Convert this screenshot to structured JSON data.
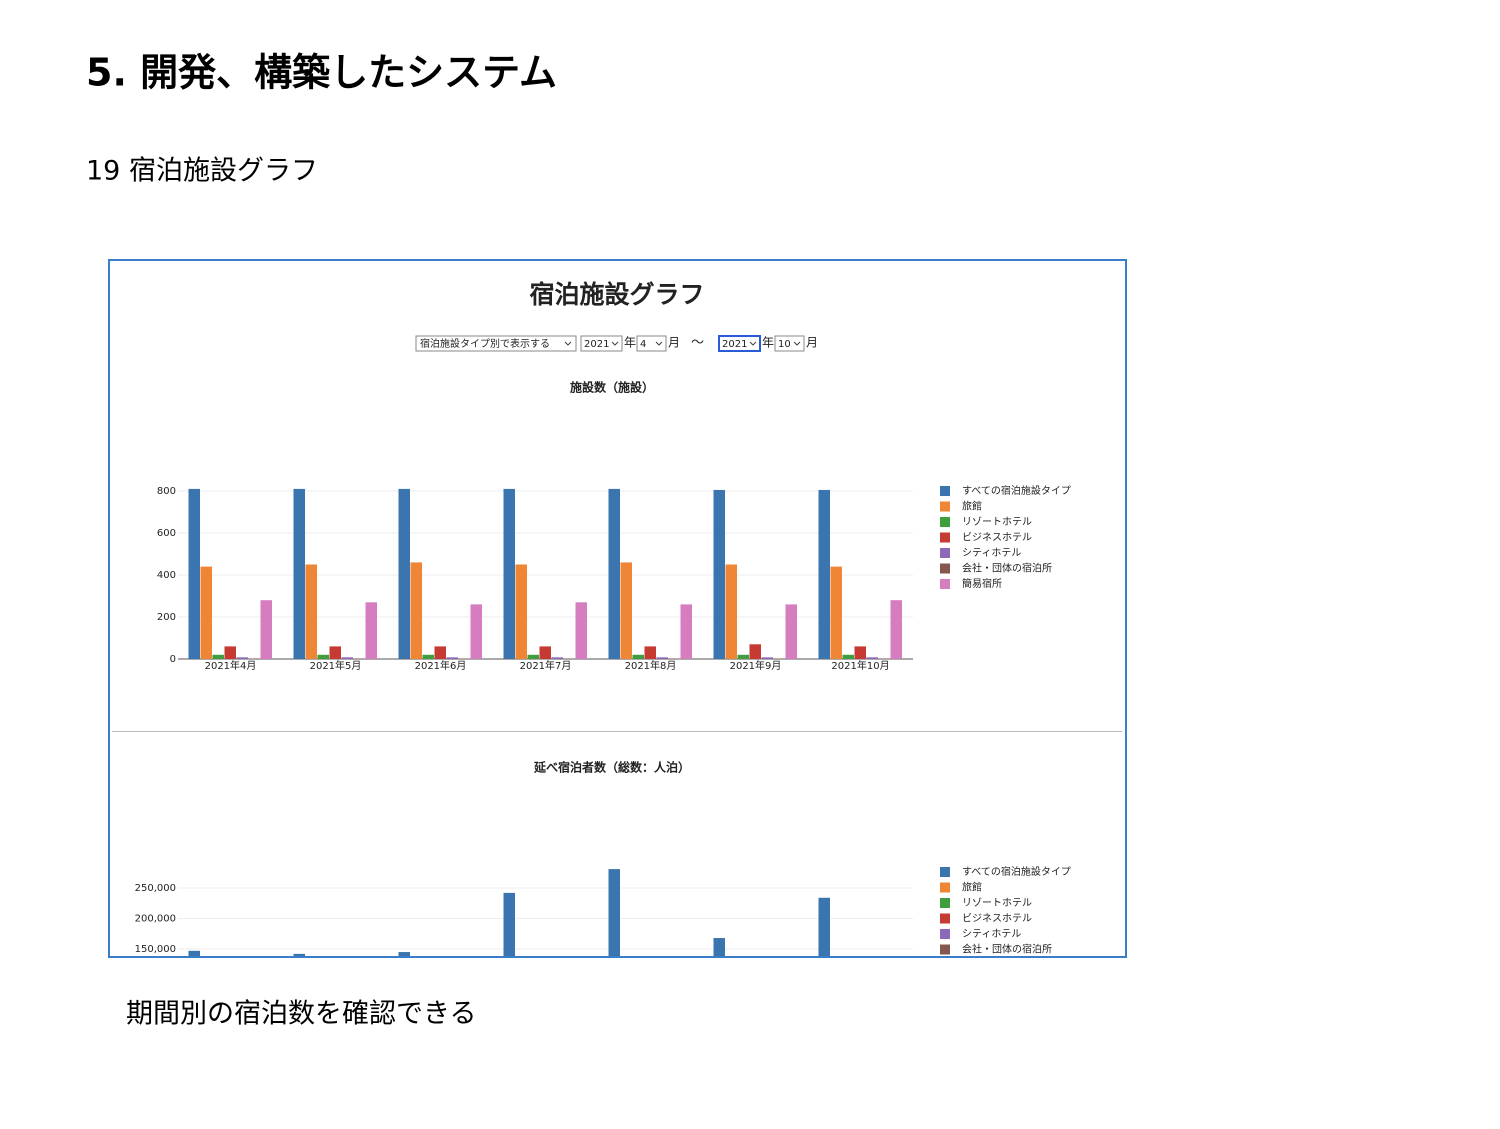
{
  "slide": {
    "title": "5. 開発、構築したシステム",
    "subtitle": "19 宿泊施設グラフ",
    "caption": "期間別の宿泊数を確認できる"
  },
  "app": {
    "title": "宿泊施設グラフ",
    "controls": {
      "type_select": "宿泊施設タイプ別で表示する",
      "from_year": "2021",
      "year_unit": "年",
      "from_month": "4",
      "month_unit": "月",
      "tilde": "〜",
      "to_year": "2021",
      "to_month": "10"
    }
  },
  "chart_data": [
    {
      "type": "bar",
      "title": "施設数（施設）",
      "categories": [
        "2021年4月",
        "2021年5月",
        "2021年6月",
        "2021年7月",
        "2021年8月",
        "2021年9月",
        "2021年10月"
      ],
      "series": [
        {
          "name": "すべての宿泊施設タイプ",
          "color": "#3b75af",
          "values": [
            810,
            810,
            810,
            810,
            810,
            805,
            805
          ]
        },
        {
          "name": "旅館",
          "color": "#ef8636",
          "values": [
            440,
            450,
            460,
            450,
            460,
            450,
            440
          ]
        },
        {
          "name": "リゾートホテル",
          "color": "#3f9f3f",
          "values": [
            20,
            20,
            20,
            20,
            20,
            20,
            20
          ]
        },
        {
          "name": "ビジネスホテル",
          "color": "#c53a32",
          "values": [
            60,
            60,
            60,
            60,
            60,
            70,
            60
          ]
        },
        {
          "name": "シティホテル",
          "color": "#8d6ab8",
          "values": [
            8,
            8,
            8,
            8,
            8,
            8,
            8
          ]
        },
        {
          "name": "会社・団体の宿泊所",
          "color": "#84584e",
          "values": [
            2,
            2,
            2,
            2,
            2,
            2,
            2
          ]
        },
        {
          "name": "簡易宿所",
          "color": "#d57dbf",
          "values": [
            280,
            270,
            260,
            270,
            260,
            260,
            280
          ]
        }
      ],
      "ylim": [
        0,
        850
      ],
      "yticks": [
        0,
        200,
        400,
        600,
        800
      ],
      "grid": true
    },
    {
      "type": "bar",
      "title": "延べ宿泊者数（総数：人泊）",
      "categories": [
        null,
        null,
        null,
        null,
        null,
        null,
        null
      ],
      "series": [
        {
          "name": "すべての宿泊施設タイプ",
          "color": "#3b75af",
          "values": [
            147000,
            142000,
            145000,
            242000,
            281000,
            168000,
            234000
          ]
        },
        {
          "name": "旅館",
          "color": "#ef8636",
          "values": [
            null,
            null,
            null,
            null,
            null,
            null,
            null
          ]
        },
        {
          "name": "リゾートホテル",
          "color": "#3f9f3f",
          "values": [
            null,
            null,
            null,
            null,
            null,
            null,
            null
          ]
        },
        {
          "name": "ビジネスホテル",
          "color": "#c53a32",
          "values": [
            null,
            null,
            null,
            null,
            null,
            null,
            null
          ]
        },
        {
          "name": "シティホテル",
          "color": "#8d6ab8",
          "values": [
            null,
            null,
            null,
            null,
            null,
            null,
            null
          ]
        },
        {
          "name": "会社・団体の宿泊所",
          "color": "#84584e",
          "values": [
            null,
            null,
            null,
            null,
            null,
            null,
            null
          ]
        }
      ],
      "ylim": [
        0,
        300000
      ],
      "yticks": [
        {
          "value": 150000,
          "label": "150,000"
        },
        {
          "value": 200000,
          "label": "200,000"
        },
        {
          "value": 250000,
          "label": "250,000"
        }
      ],
      "grid": true
    }
  ]
}
